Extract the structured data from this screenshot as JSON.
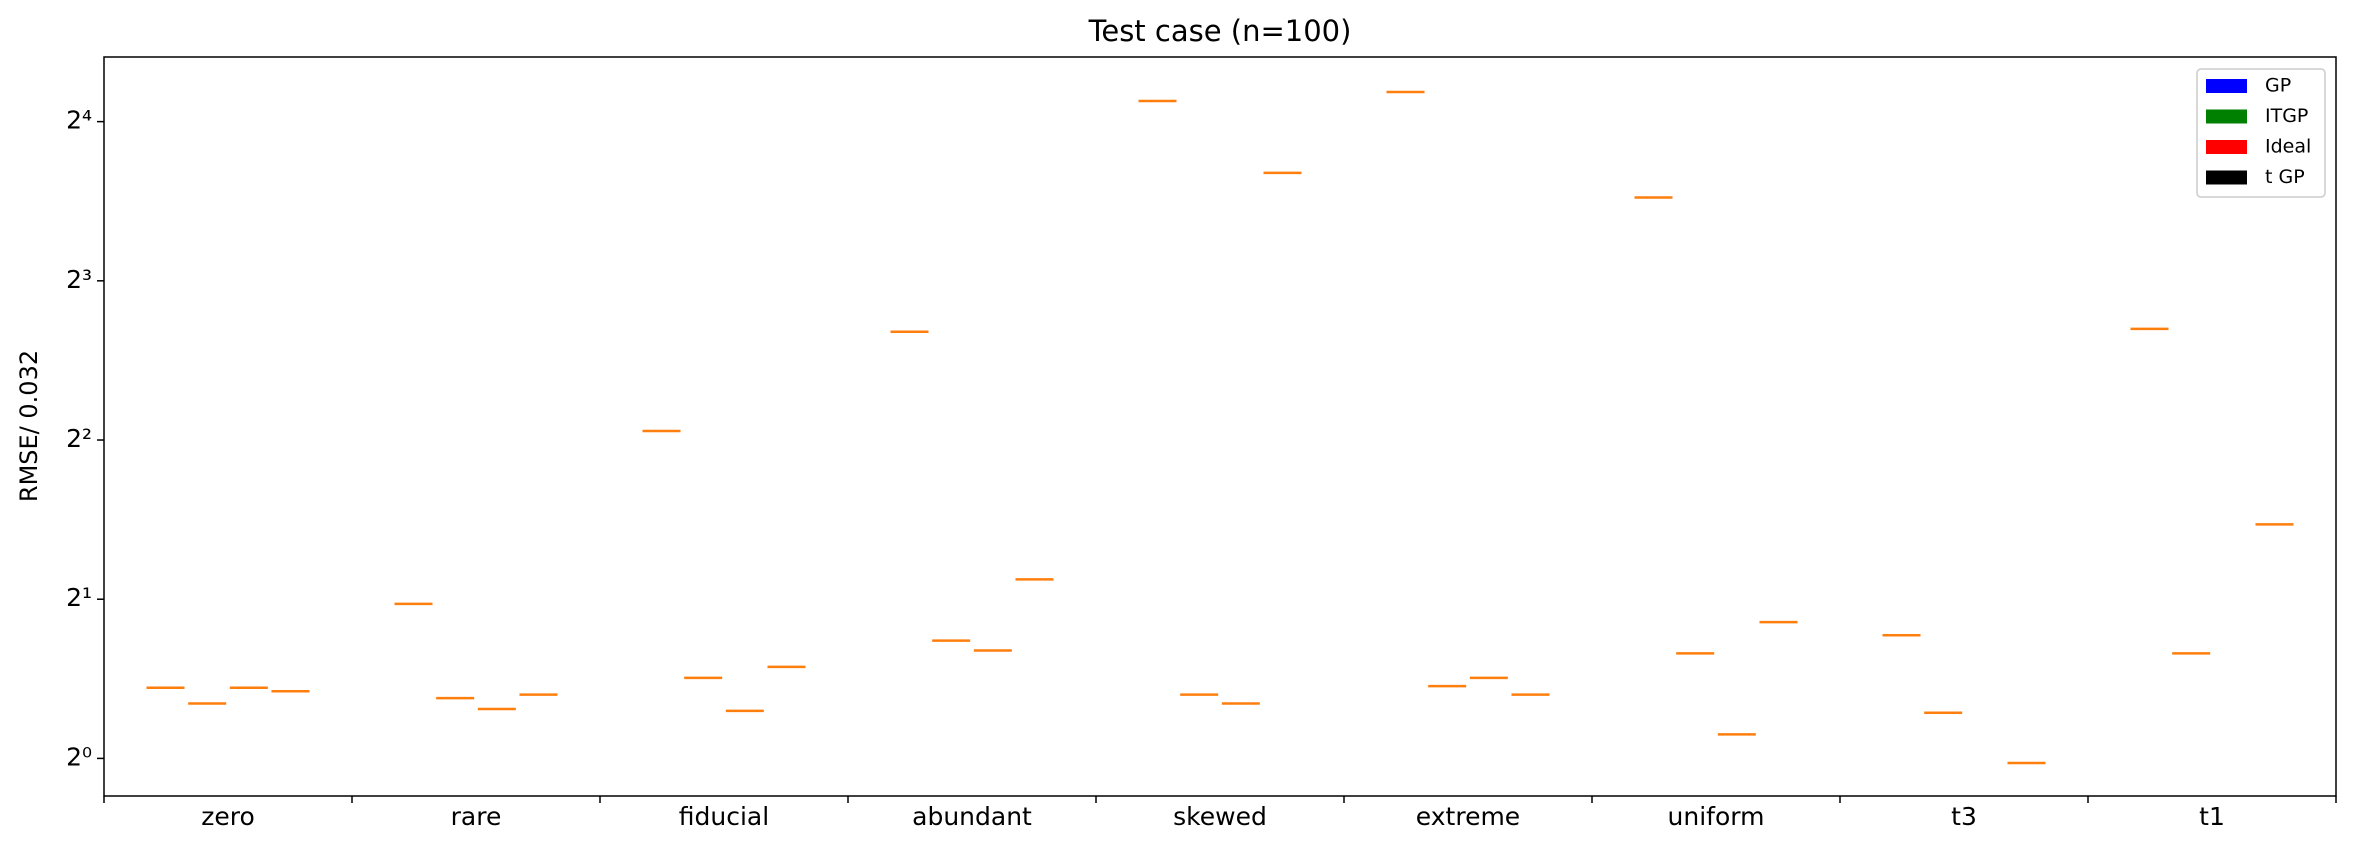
{
  "chart_data": {
    "type": "median-lines",
    "title": "Test case (n=100)",
    "y_label": "RMSE/ 0.032",
    "categories": [
      "zero",
      "rare",
      "fiducial",
      "abundant",
      "skewed",
      "extreme",
      "uniform",
      "t3",
      "t1"
    ],
    "series": [
      {
        "name": "GP",
        "color": "#0000ff",
        "values": [
          1.36,
          1.96,
          4.16,
          6.41,
          17.5,
          18.2,
          11.5,
          1.71,
          6.49
        ]
      },
      {
        "name": "ITGP",
        "color": "#008000",
        "values": [
          1.27,
          1.3,
          1.42,
          1.67,
          1.32,
          1.37,
          1.58,
          1.22,
          1.58
        ]
      },
      {
        "name": "Ideal",
        "color": "#ff0000",
        "values": [
          1.36,
          1.24,
          1.23,
          1.6,
          1.27,
          1.42,
          1.11,
          null,
          null
        ]
      },
      {
        "name": "t GP",
        "color": "#000000",
        "values": [
          1.34,
          1.32,
          1.49,
          2.18,
          12.8,
          1.32,
          1.81,
          0.98,
          2.77
        ]
      }
    ],
    "median_color": "#ff7f0e",
    "log_scale": "y",
    "log_base": 2,
    "ylim": [
      0.849,
      21.2
    ],
    "yticks": [
      {
        "value": 1,
        "label": "2⁰"
      },
      {
        "value": 2,
        "label": "2¹"
      },
      {
        "value": 4,
        "label": "2²"
      },
      {
        "value": 8,
        "label": "2³"
      },
      {
        "value": 16,
        "label": "2⁴"
      }
    ],
    "legend": "upper right"
  }
}
